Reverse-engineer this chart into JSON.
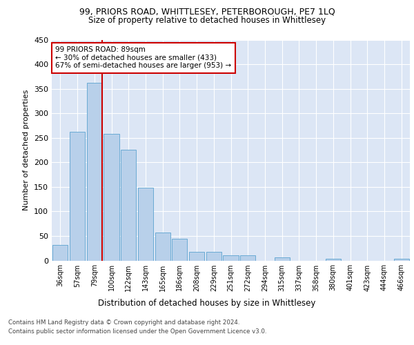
{
  "title1": "99, PRIORS ROAD, WHITTLESEY, PETERBOROUGH, PE7 1LQ",
  "title2": "Size of property relative to detached houses in Whittlesey",
  "xlabel": "Distribution of detached houses by size in Whittlesey",
  "ylabel": "Number of detached properties",
  "categories": [
    "36sqm",
    "57sqm",
    "79sqm",
    "100sqm",
    "122sqm",
    "143sqm",
    "165sqm",
    "186sqm",
    "208sqm",
    "229sqm",
    "251sqm",
    "272sqm",
    "294sqm",
    "315sqm",
    "337sqm",
    "358sqm",
    "380sqm",
    "401sqm",
    "423sqm",
    "444sqm",
    "466sqm"
  ],
  "values": [
    31,
    262,
    362,
    258,
    226,
    148,
    57,
    45,
    18,
    18,
    11,
    10,
    0,
    6,
    0,
    0,
    4,
    0,
    0,
    0,
    4
  ],
  "bar_color": "#b8d0ea",
  "bar_edge_color": "#6aaad4",
  "vline_color": "#cc0000",
  "annotation_text": "99 PRIORS ROAD: 89sqm\n← 30% of detached houses are smaller (433)\n67% of semi-detached houses are larger (953) →",
  "annotation_box_color": "white",
  "annotation_box_edge": "#cc0000",
  "ylim": [
    0,
    450
  ],
  "yticks": [
    0,
    50,
    100,
    150,
    200,
    250,
    300,
    350,
    400,
    450
  ],
  "background_color": "#dce6f5",
  "footer1": "Contains HM Land Registry data © Crown copyright and database right 2024.",
  "footer2": "Contains public sector information licensed under the Open Government Licence v3.0."
}
